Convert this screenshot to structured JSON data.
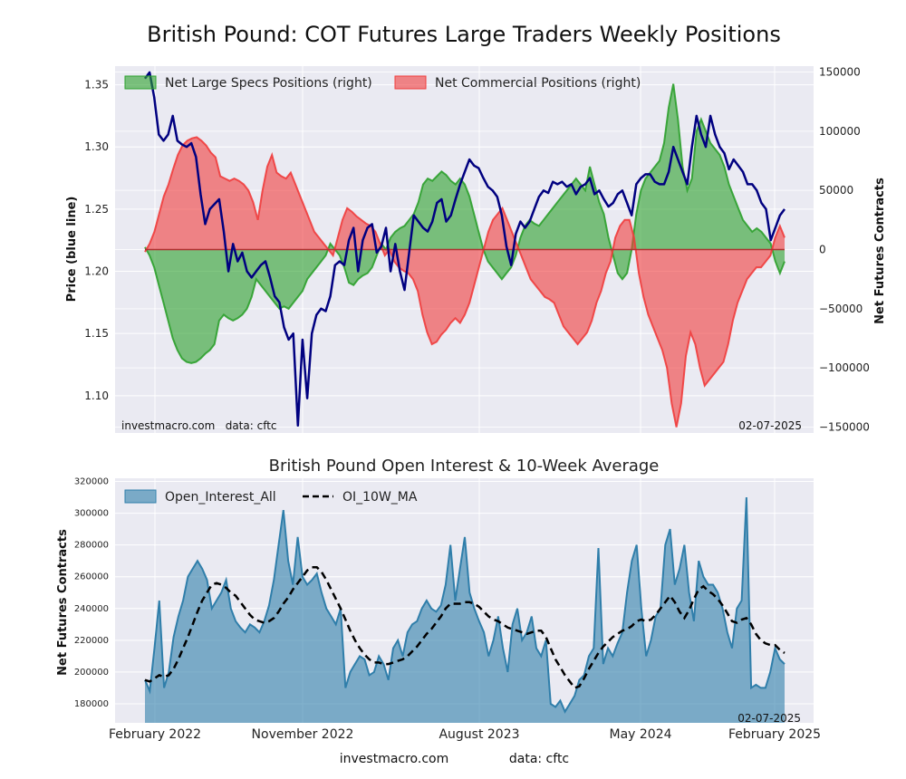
{
  "title": "British Pound: COT Futures Large Traders Weekly Positions",
  "footer": {
    "site": "investmacro.com",
    "source": "data: cftc"
  },
  "chart_data": [
    {
      "type": "line+area",
      "title": "British Pound: COT Futures Large Traders Weekly Positions",
      "ylabel_left": "Price (blue line)",
      "ylabel_right": "Net Futures Contracts",
      "ylim_left": [
        1.07,
        1.365
      ],
      "ylim_right": [
        -155000,
        155000
      ],
      "yticks_left": [
        "1.10",
        "1.15",
        "1.20",
        "1.25",
        "1.30",
        "1.35"
      ],
      "yticks_right": [
        "−150000",
        "−100000",
        "−50000",
        "0",
        "50000",
        "100000",
        "150000"
      ],
      "legend_position": "top-left",
      "grid": true,
      "note_left": "investmacro.com   data: cftc",
      "note_right": "02-07-2025",
      "x_start": "2022-01-04",
      "x_end": "2025-02-04",
      "series": [
        {
          "name": "Net Large Specs Positions (right)",
          "kind": "area",
          "axis": "right",
          "color": "#2ca02c",
          "values": [
            2000,
            -5000,
            -15000,
            -30000,
            -45000,
            -60000,
            -75000,
            -85000,
            -92000,
            -95000,
            -96000,
            -95000,
            -92000,
            -88000,
            -85000,
            -80000,
            -60000,
            -55000,
            -58000,
            -60000,
            -58000,
            -55000,
            -50000,
            -40000,
            -25000,
            -30000,
            -35000,
            -40000,
            -45000,
            -50000,
            -48000,
            -50000,
            -45000,
            -40000,
            -35000,
            -25000,
            -20000,
            -15000,
            -10000,
            -5000,
            5000,
            0,
            -5000,
            -15000,
            -28000,
            -30000,
            -25000,
            -22000,
            -20000,
            -15000,
            -5000,
            5000,
            0,
            10000,
            15000,
            18000,
            20000,
            25000,
            30000,
            40000,
            55000,
            60000,
            58000,
            62000,
            66000,
            63000,
            58000,
            55000,
            60000,
            55000,
            45000,
            30000,
            15000,
            0,
            -10000,
            -15000,
            -20000,
            -25000,
            -20000,
            -15000,
            -5000,
            10000,
            20000,
            25000,
            22000,
            20000,
            25000,
            30000,
            35000,
            40000,
            45000,
            50000,
            55000,
            60000,
            55000,
            50000,
            70000,
            55000,
            40000,
            30000,
            10000,
            -5000,
            -20000,
            -25000,
            -20000,
            0,
            30000,
            50000,
            60000,
            65000,
            70000,
            75000,
            90000,
            120000,
            140000,
            110000,
            70000,
            50000,
            60000,
            100000,
            110000,
            100000,
            90000,
            85000,
            80000,
            70000,
            55000,
            45000,
            35000,
            25000,
            20000,
            15000,
            18000,
            15000,
            10000,
            5000,
            -10000,
            -20000,
            -10000
          ]
        },
        {
          "name": "Net Commercial Positions (right)",
          "kind": "area",
          "axis": "right",
          "color": "#f03c3c",
          "values": [
            -2000,
            5000,
            15000,
            30000,
            45000,
            55000,
            68000,
            80000,
            88000,
            92000,
            94000,
            95000,
            92000,
            88000,
            82000,
            78000,
            62000,
            60000,
            58000,
            60000,
            58000,
            55000,
            50000,
            40000,
            25000,
            50000,
            70000,
            80000,
            65000,
            62000,
            60000,
            65000,
            55000,
            45000,
            35000,
            25000,
            15000,
            10000,
            5000,
            0,
            -5000,
            10000,
            25000,
            35000,
            32000,
            28000,
            25000,
            22000,
            20000,
            15000,
            5000,
            -5000,
            0,
            -10000,
            -15000,
            -18000,
            -20000,
            -25000,
            -35000,
            -55000,
            -70000,
            -80000,
            -78000,
            -72000,
            -68000,
            -62000,
            -58000,
            -62000,
            -55000,
            -45000,
            -30000,
            -15000,
            0,
            15000,
            25000,
            30000,
            35000,
            25000,
            15000,
            5000,
            -5000,
            -15000,
            -25000,
            -30000,
            -35000,
            -40000,
            -42000,
            -45000,
            -55000,
            -65000,
            -70000,
            -75000,
            -80000,
            -75000,
            -70000,
            -60000,
            -45000,
            -35000,
            -20000,
            -10000,
            10000,
            20000,
            25000,
            25000,
            10000,
            -20000,
            -40000,
            -55000,
            -65000,
            -75000,
            -85000,
            -100000,
            -130000,
            -150000,
            -130000,
            -90000,
            -70000,
            -80000,
            -100000,
            -115000,
            -110000,
            -105000,
            -100000,
            -95000,
            -80000,
            -60000,
            -45000,
            -35000,
            -25000,
            -20000,
            -15000,
            -15000,
            -10000,
            -5000,
            10000,
            20000,
            10000
          ]
        },
        {
          "name": "Price (blue line)",
          "kind": "line",
          "axis": "left",
          "color": "#000080",
          "values": [
            1.355,
            1.36,
            1.34,
            1.31,
            1.305,
            1.31,
            1.325,
            1.305,
            1.302,
            1.3,
            1.303,
            1.292,
            1.262,
            1.238,
            1.25,
            1.254,
            1.258,
            1.232,
            1.2,
            1.222,
            1.208,
            1.215,
            1.2,
            1.195,
            1.2,
            1.205,
            1.208,
            1.195,
            1.18,
            1.175,
            1.155,
            1.145,
            1.15,
            1.076,
            1.145,
            1.098,
            1.15,
            1.165,
            1.17,
            1.168,
            1.18,
            1.205,
            1.208,
            1.205,
            1.225,
            1.235,
            1.2,
            1.225,
            1.235,
            1.238,
            1.215,
            1.22,
            1.235,
            1.2,
            1.222,
            1.2,
            1.185,
            1.215,
            1.245,
            1.24,
            1.235,
            1.232,
            1.24,
            1.255,
            1.258,
            1.24,
            1.245,
            1.258,
            1.27,
            1.28,
            1.29,
            1.285,
            1.283,
            1.275,
            1.268,
            1.265,
            1.26,
            1.245,
            1.22,
            1.205,
            1.23,
            1.24,
            1.235,
            1.24,
            1.25,
            1.26,
            1.265,
            1.263,
            1.272,
            1.27,
            1.272,
            1.268,
            1.27,
            1.262,
            1.268,
            1.27,
            1.275,
            1.262,
            1.265,
            1.258,
            1.252,
            1.255,
            1.262,
            1.265,
            1.255,
            1.245,
            1.27,
            1.275,
            1.278,
            1.278,
            1.272,
            1.27,
            1.27,
            1.28,
            1.3,
            1.29,
            1.28,
            1.27,
            1.3,
            1.325,
            1.31,
            1.3,
            1.325,
            1.31,
            1.3,
            1.295,
            1.282,
            1.29,
            1.285,
            1.28,
            1.27,
            1.27,
            1.265,
            1.255,
            1.25,
            1.225,
            1.235,
            1.245,
            1.25
          ]
        }
      ]
    },
    {
      "type": "area+line",
      "title": "British Pound Open Interest & 10-Week Average",
      "ylabel": "Net Futures Contracts",
      "ylim": [
        168000,
        322000
      ],
      "yticks": [
        "180000",
        "200000",
        "220000",
        "240000",
        "260000",
        "280000",
        "300000",
        "320000"
      ],
      "xticks": [
        "February 2022",
        "November 2022",
        "August 2023",
        "May 2024",
        "February 2025"
      ],
      "legend_position": "top-left",
      "grid": true,
      "note_right": "02-07-2025",
      "series": [
        {
          "name": "Open_Interest_All",
          "kind": "area",
          "color": "#2f7eaa",
          "values": [
            195000,
            188000,
            215000,
            245000,
            190000,
            200000,
            222000,
            235000,
            245000,
            260000,
            265000,
            270000,
            265000,
            258000,
            240000,
            245000,
            250000,
            258000,
            240000,
            232000,
            228000,
            225000,
            230000,
            228000,
            225000,
            232000,
            242000,
            258000,
            280000,
            302000,
            270000,
            255000,
            285000,
            260000,
            255000,
            258000,
            262000,
            250000,
            240000,
            235000,
            230000,
            240000,
            190000,
            200000,
            205000,
            210000,
            208000,
            198000,
            200000,
            210000,
            205000,
            195000,
            215000,
            220000,
            210000,
            225000,
            230000,
            232000,
            240000,
            245000,
            240000,
            238000,
            242000,
            255000,
            280000,
            245000,
            265000,
            285000,
            250000,
            240000,
            232000,
            225000,
            210000,
            220000,
            235000,
            215000,
            200000,
            230000,
            240000,
            220000,
            225000,
            235000,
            215000,
            210000,
            220000,
            180000,
            178000,
            182000,
            175000,
            180000,
            185000,
            195000,
            198000,
            210000,
            215000,
            278000,
            205000,
            215000,
            210000,
            218000,
            225000,
            250000,
            270000,
            280000,
            240000,
            210000,
            220000,
            235000,
            240000,
            280000,
            290000,
            255000,
            265000,
            280000,
            250000,
            232000,
            270000,
            260000,
            255000,
            255000,
            250000,
            240000,
            225000,
            215000,
            240000,
            245000,
            310000,
            190000,
            192000,
            190000,
            190000,
            200000,
            215000,
            208000,
            205000
          ]
        },
        {
          "name": "OI_10W_MA",
          "kind": "line",
          "style": "dashed",
          "color": "#000000",
          "values": [
            195000,
            194000,
            196000,
            198000,
            197000,
            198000,
            202000,
            208000,
            215000,
            222000,
            230000,
            238000,
            245000,
            250000,
            255000,
            256000,
            255000,
            253000,
            250000,
            248000,
            244000,
            240000,
            236000,
            233000,
            232000,
            231000,
            232000,
            234000,
            238000,
            243000,
            247000,
            252000,
            256000,
            260000,
            264000,
            266000,
            266000,
            263000,
            258000,
            252000,
            246000,
            240000,
            233000,
            226000,
            220000,
            215000,
            211000,
            208000,
            206000,
            206000,
            205000,
            205000,
            206000,
            207000,
            208000,
            210000,
            213000,
            216000,
            220000,
            224000,
            227000,
            231000,
            235000,
            240000,
            243000,
            243000,
            243000,
            244000,
            244000,
            243000,
            241000,
            238000,
            235000,
            233000,
            232000,
            230000,
            228000,
            227000,
            226000,
            225000,
            224000,
            225000,
            226000,
            226000,
            222000,
            215000,
            208000,
            203000,
            198000,
            194000,
            190000,
            191000,
            196000,
            202000,
            207000,
            212000,
            216000,
            219000,
            222000,
            224000,
            226000,
            227000,
            229000,
            232000,
            233000,
            232000,
            233000,
            236000,
            240000,
            244000,
            248000,
            244000,
            238000,
            234000,
            239000,
            246000,
            252000,
            254000,
            251000,
            249000,
            246000,
            242000,
            237000,
            232000,
            231000,
            233000,
            234000,
            230000,
            224000,
            220000,
            218000,
            217000,
            217000,
            214000,
            212000
          ]
        }
      ]
    }
  ]
}
